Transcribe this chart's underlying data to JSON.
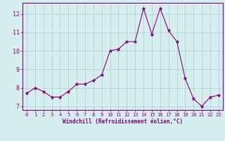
{
  "x": [
    0,
    1,
    2,
    3,
    4,
    5,
    6,
    7,
    8,
    9,
    10,
    11,
    12,
    13,
    14,
    15,
    16,
    17,
    18,
    19,
    20,
    21,
    22,
    23
  ],
  "y": [
    7.7,
    8.0,
    7.8,
    7.5,
    7.5,
    7.8,
    8.2,
    8.2,
    8.4,
    8.7,
    10.0,
    10.1,
    10.5,
    10.5,
    12.3,
    10.9,
    12.3,
    11.1,
    10.5,
    8.5,
    7.4,
    7.0,
    7.5,
    7.6
  ],
  "line_color": "#880088",
  "marker": "*",
  "marker_size": 3.5,
  "bg_color": "#d5eeee",
  "grid_color": "#aacccc",
  "xlabel": "Windchill (Refroidissement éolien,°C)",
  "xlabel_color": "#880088",
  "tick_color": "#880088",
  "spine_color": "#880088",
  "ylabel_ticks": [
    7,
    8,
    9,
    10,
    11,
    12
  ],
  "xlim": [
    -0.5,
    23.5
  ],
  "ylim": [
    6.8,
    12.6
  ]
}
